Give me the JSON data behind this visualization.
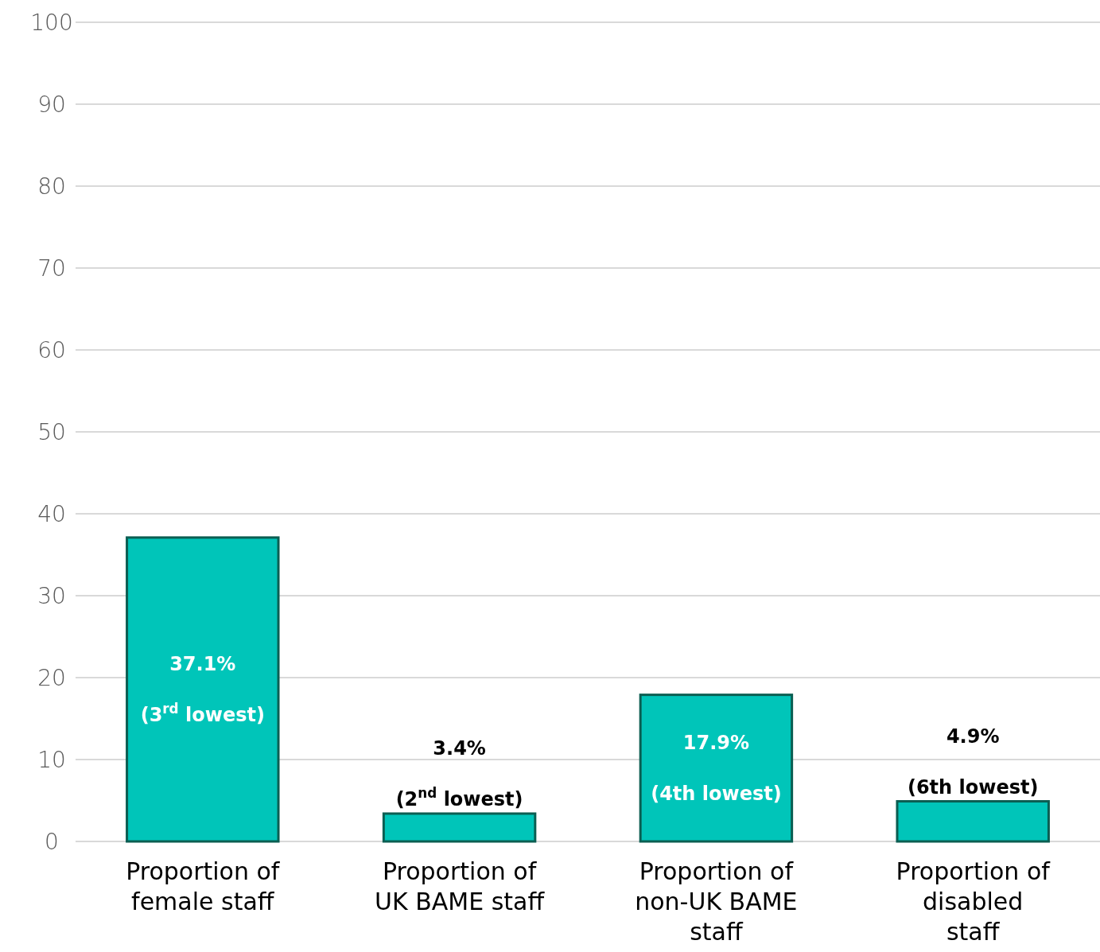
{
  "chart_data": {
    "type": "bar",
    "categories": [
      "Proportion of female staff",
      "Proportion of UK BAME staff",
      "Proportion of non-UK BAME staff",
      "Proportion of disabled staff"
    ],
    "values": [
      37.1,
      3.4,
      17.9,
      4.9
    ],
    "color": "#00c5b9",
    "ylim": [
      0,
      100
    ],
    "yticks": [
      0,
      10,
      20,
      30,
      40,
      50,
      60,
      70,
      80,
      90,
      100
    ],
    "grid": "y",
    "value_labels": [
      "37.1%\n\n(3$^{rd}$ lowest)",
      "3.4%\n\n(2$^{nd}$ lowest)",
      "17.9%\n\n(4th lowest)",
      "4.9%\n\n(6th lowest)"
    ]
  }
}
